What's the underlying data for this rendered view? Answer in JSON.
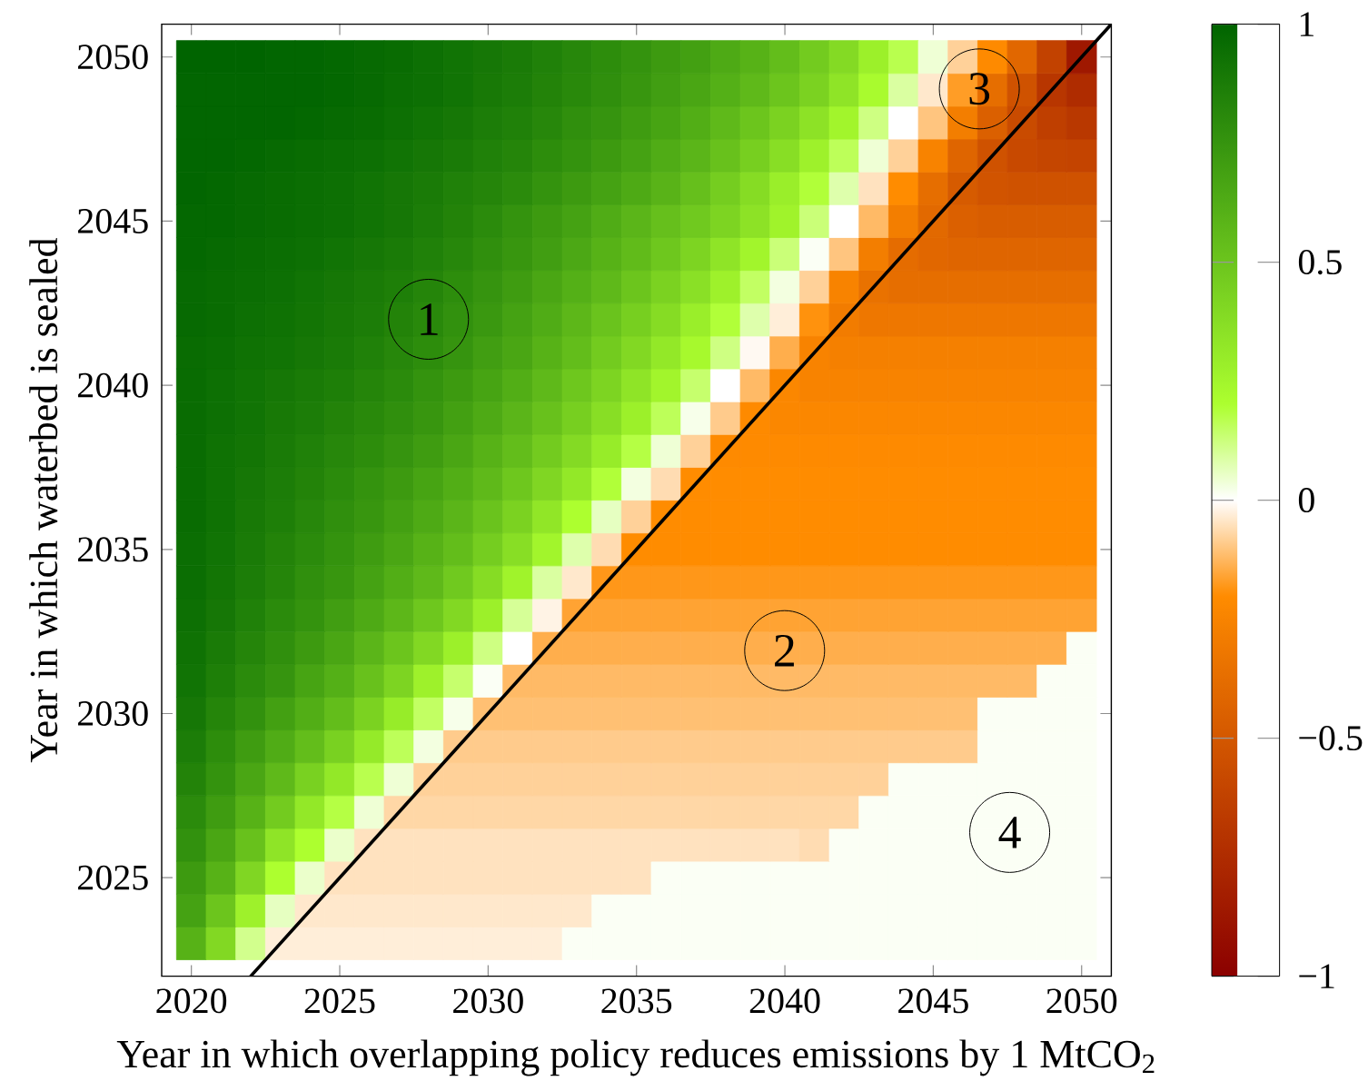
{
  "chart_data": {
    "type": "heatmap",
    "xlabel": "Year in which overlapping policy reduces emissions by 1 MtCO$_{2}$",
    "ylabel": "Year in which waterbed is sealed",
    "x": [
      2020,
      2021,
      2022,
      2023,
      2024,
      2025,
      2026,
      2027,
      2028,
      2029,
      2030,
      2031,
      2032,
      2033,
      2034,
      2035,
      2036,
      2037,
      2038,
      2039,
      2040,
      2041,
      2042,
      2043,
      2044,
      2045,
      2046,
      2047,
      2048,
      2049,
      2050
    ],
    "y": [
      2050,
      2049,
      2048,
      2047,
      2046,
      2045,
      2044,
      2043,
      2042,
      2041,
      2040,
      2039,
      2038,
      2037,
      2036,
      2035,
      2034,
      2033,
      2032,
      2031,
      2030,
      2029,
      2028,
      2027,
      2026,
      2025,
      2024,
      2023
    ],
    "xlim": [
      2019,
      2051
    ],
    "ylim": [
      2022,
      2051
    ],
    "xticks": [
      2020,
      2025,
      2030,
      2035,
      2040,
      2045,
      2050
    ],
    "yticks": [
      2025,
      2030,
      2035,
      2040,
      2045,
      2050
    ],
    "clim": [
      -1,
      1
    ],
    "cticks": [
      {
        "value": -1,
        "label": "−1"
      },
      {
        "value": -0.5,
        "label": "−0.5"
      },
      0,
      0.5,
      1
    ],
    "cells": [
      [
        1.0,
        1.0,
        1.0,
        0.99,
        0.99,
        0.98,
        0.97,
        0.96,
        0.94,
        0.92,
        0.9,
        0.88,
        0.85,
        0.82,
        0.79,
        0.76,
        0.72,
        0.69,
        0.64,
        0.6,
        0.54,
        0.47,
        0.39,
        0.28,
        0.17,
        0.04,
        -0.08,
        -0.21,
        -0.41,
        -0.62,
        -0.86
      ],
      [
        0.99,
        0.99,
        0.99,
        0.99,
        0.99,
        0.98,
        0.97,
        0.95,
        0.94,
        0.92,
        0.89,
        0.87,
        0.84,
        0.81,
        0.78,
        0.74,
        0.7,
        0.66,
        0.61,
        0.56,
        0.5,
        0.43,
        0.34,
        0.22,
        0.09,
        -0.04,
        -0.17,
        -0.37,
        -0.53,
        -0.69,
        -0.75
      ],
      [
        0.99,
        0.99,
        0.99,
        0.99,
        0.98,
        0.97,
        0.96,
        0.94,
        0.92,
        0.9,
        0.87,
        0.85,
        0.82,
        0.78,
        0.75,
        0.71,
        0.67,
        0.62,
        0.56,
        0.5,
        0.43,
        0.35,
        0.25,
        0.12,
        0.0,
        -0.1,
        -0.28,
        -0.45,
        -0.57,
        -0.64,
        -0.68
      ],
      [
        0.99,
        0.99,
        0.98,
        0.97,
        0.96,
        0.95,
        0.94,
        0.92,
        0.9,
        0.88,
        0.85,
        0.83,
        0.79,
        0.76,
        0.72,
        0.68,
        0.63,
        0.58,
        0.52,
        0.45,
        0.37,
        0.27,
        0.16,
        0.04,
        -0.08,
        -0.25,
        -0.42,
        -0.53,
        -0.58,
        -0.6,
        -0.61
      ],
      [
        0.99,
        0.98,
        0.97,
        0.96,
        0.95,
        0.94,
        0.92,
        0.9,
        0.88,
        0.85,
        0.83,
        0.8,
        0.76,
        0.72,
        0.68,
        0.64,
        0.59,
        0.53,
        0.46,
        0.38,
        0.29,
        0.19,
        0.08,
        -0.05,
        -0.2,
        -0.37,
        -0.48,
        -0.52,
        -0.53,
        -0.53,
        -0.53
      ],
      [
        0.98,
        0.98,
        0.97,
        0.96,
        0.95,
        0.94,
        0.92,
        0.9,
        0.87,
        0.84,
        0.8,
        0.76,
        0.72,
        0.68,
        0.63,
        0.58,
        0.53,
        0.48,
        0.42,
        0.35,
        0.26,
        0.13,
        0.0,
        -0.12,
        -0.28,
        -0.4,
        -0.45,
        -0.47,
        -0.47,
        -0.47,
        -0.47
      ],
      [
        0.98,
        0.97,
        0.96,
        0.95,
        0.94,
        0.92,
        0.9,
        0.88,
        0.85,
        0.82,
        0.78,
        0.74,
        0.7,
        0.65,
        0.6,
        0.55,
        0.49,
        0.42,
        0.34,
        0.25,
        0.13,
        0.01,
        -0.1,
        -0.28,
        -0.38,
        -0.41,
        -0.42,
        -0.42,
        -0.42,
        -0.42,
        -0.42
      ],
      [
        0.97,
        0.96,
        0.95,
        0.94,
        0.92,
        0.9,
        0.88,
        0.86,
        0.83,
        0.79,
        0.75,
        0.71,
        0.66,
        0.61,
        0.56,
        0.5,
        0.43,
        0.36,
        0.27,
        0.15,
        0.03,
        -0.08,
        -0.25,
        -0.35,
        -0.37,
        -0.37,
        -0.37,
        -0.37,
        -0.37,
        -0.37,
        -0.37
      ],
      [
        0.97,
        0.96,
        0.94,
        0.93,
        0.91,
        0.89,
        0.87,
        0.84,
        0.81,
        0.77,
        0.73,
        0.68,
        0.63,
        0.57,
        0.51,
        0.45,
        0.38,
        0.29,
        0.19,
        0.08,
        -0.03,
        -0.19,
        -0.29,
        -0.32,
        -0.32,
        -0.32,
        -0.32,
        -0.32,
        -0.32,
        -0.32,
        -0.32
      ],
      [
        0.96,
        0.95,
        0.93,
        0.92,
        0.9,
        0.88,
        0.85,
        0.82,
        0.79,
        0.75,
        0.7,
        0.66,
        0.6,
        0.54,
        0.47,
        0.4,
        0.32,
        0.23,
        0.12,
        -0.01,
        -0.14,
        -0.25,
        -0.27,
        -0.27,
        -0.27,
        -0.27,
        -0.27,
        -0.27,
        -0.27,
        -0.27,
        -0.27
      ],
      [
        0.96,
        0.94,
        0.92,
        0.9,
        0.88,
        0.86,
        0.83,
        0.8,
        0.76,
        0.72,
        0.67,
        0.62,
        0.56,
        0.49,
        0.42,
        0.34,
        0.25,
        0.14,
        0.0,
        -0.12,
        -0.23,
        -0.25,
        -0.25,
        -0.25,
        -0.25,
        -0.25,
        -0.25,
        -0.25,
        -0.25,
        -0.25,
        -0.25
      ],
      [
        0.96,
        0.94,
        0.92,
        0.89,
        0.87,
        0.84,
        0.81,
        0.78,
        0.74,
        0.69,
        0.64,
        0.58,
        0.52,
        0.45,
        0.37,
        0.28,
        0.16,
        0.02,
        -0.09,
        -0.21,
        -0.23,
        -0.23,
        -0.23,
        -0.23,
        -0.23,
        -0.23,
        -0.23,
        -0.23,
        -0.23,
        -0.23,
        -0.23
      ],
      [
        0.96,
        0.93,
        0.91,
        0.88,
        0.85,
        0.82,
        0.79,
        0.75,
        0.71,
        0.66,
        0.6,
        0.54,
        0.47,
        0.39,
        0.3,
        0.18,
        0.04,
        -0.08,
        -0.21,
        -0.21,
        -0.21,
        -0.21,
        -0.21,
        -0.21,
        -0.21,
        -0.21,
        -0.21,
        -0.21,
        -0.21,
        -0.21,
        -0.21
      ],
      [
        0.96,
        0.93,
        0.9,
        0.87,
        0.84,
        0.8,
        0.76,
        0.72,
        0.67,
        0.62,
        0.56,
        0.49,
        0.41,
        0.32,
        0.19,
        0.03,
        -0.06,
        -0.2,
        -0.2,
        -0.2,
        -0.2,
        -0.2,
        -0.2,
        -0.2,
        -0.2,
        -0.2,
        -0.2,
        -0.2,
        -0.2,
        -0.2,
        -0.2
      ],
      [
        0.96,
        0.93,
        0.89,
        0.86,
        0.82,
        0.78,
        0.74,
        0.69,
        0.64,
        0.58,
        0.51,
        0.43,
        0.33,
        0.2,
        0.06,
        -0.08,
        -0.2,
        -0.2,
        -0.2,
        -0.2,
        -0.2,
        -0.2,
        -0.2,
        -0.2,
        -0.2,
        -0.2,
        -0.2,
        -0.2,
        -0.2,
        -0.2,
        -0.2
      ],
      [
        0.95,
        0.92,
        0.88,
        0.84,
        0.8,
        0.76,
        0.71,
        0.66,
        0.6,
        0.54,
        0.46,
        0.37,
        0.25,
        0.08,
        -0.06,
        -0.2,
        -0.2,
        -0.2,
        -0.2,
        -0.2,
        -0.2,
        -0.2,
        -0.2,
        -0.2,
        -0.2,
        -0.2,
        -0.2,
        -0.2,
        -0.2,
        -0.2,
        -0.2
      ],
      [
        0.95,
        0.91,
        0.87,
        0.83,
        0.78,
        0.74,
        0.68,
        0.62,
        0.56,
        0.48,
        0.38,
        0.26,
        0.09,
        -0.04,
        -0.18,
        -0.18,
        -0.18,
        -0.18,
        -0.18,
        -0.18,
        -0.18,
        -0.18,
        -0.18,
        -0.18,
        -0.18,
        -0.18,
        -0.18,
        -0.18,
        -0.18,
        -0.18,
        -0.18
      ],
      [
        0.94,
        0.9,
        0.85,
        0.8,
        0.76,
        0.7,
        0.64,
        0.57,
        0.49,
        0.4,
        0.28,
        0.1,
        -0.02,
        -0.16,
        -0.16,
        -0.16,
        -0.16,
        -0.16,
        -0.16,
        -0.16,
        -0.16,
        -0.16,
        -0.16,
        -0.16,
        -0.16,
        -0.16,
        -0.16,
        -0.16,
        -0.16,
        -0.16,
        -0.16
      ],
      [
        0.93,
        0.88,
        0.83,
        0.78,
        0.72,
        0.66,
        0.58,
        0.5,
        0.4,
        0.28,
        0.12,
        0.0,
        -0.14,
        -0.14,
        -0.14,
        -0.14,
        -0.14,
        -0.14,
        -0.14,
        -0.14,
        -0.14,
        -0.14,
        -0.14,
        -0.14,
        -0.14,
        -0.14,
        -0.14,
        -0.14,
        -0.14,
        -0.14,
        0.01
      ],
      [
        0.92,
        0.86,
        0.8,
        0.75,
        0.67,
        0.61,
        0.52,
        0.42,
        0.27,
        0.14,
        0.01,
        -0.12,
        -0.12,
        -0.12,
        -0.12,
        -0.12,
        -0.12,
        -0.12,
        -0.12,
        -0.12,
        -0.12,
        -0.12,
        -0.12,
        -0.12,
        -0.12,
        -0.12,
        -0.12,
        -0.12,
        -0.12,
        0.01,
        0.01
      ],
      [
        0.9,
        0.83,
        0.77,
        0.69,
        0.62,
        0.54,
        0.43,
        0.3,
        0.15,
        0.02,
        -0.11,
        -0.11,
        -0.11,
        -0.11,
        -0.11,
        -0.11,
        -0.11,
        -0.11,
        -0.11,
        -0.11,
        -0.11,
        -0.11,
        -0.11,
        -0.11,
        -0.11,
        -0.11,
        -0.11,
        0.01,
        0.01,
        0.01,
        0.01
      ],
      [
        0.87,
        0.79,
        0.71,
        0.63,
        0.54,
        0.44,
        0.31,
        0.16,
        0.03,
        -0.09,
        -0.09,
        -0.09,
        -0.09,
        -0.09,
        -0.09,
        -0.09,
        -0.09,
        -0.09,
        -0.09,
        -0.09,
        -0.09,
        -0.09,
        -0.09,
        -0.09,
        -0.09,
        -0.09,
        -0.09,
        0.01,
        0.01,
        0.01,
        0.01
      ],
      [
        0.84,
        0.76,
        0.66,
        0.56,
        0.44,
        0.32,
        0.17,
        0.04,
        -0.08,
        -0.08,
        -0.08,
        -0.08,
        -0.08,
        -0.08,
        -0.08,
        -0.08,
        -0.08,
        -0.08,
        -0.08,
        -0.08,
        -0.08,
        -0.08,
        -0.08,
        -0.08,
        0.01,
        0.01,
        0.01,
        0.01,
        0.01,
        0.01,
        0.01
      ],
      [
        0.8,
        0.71,
        0.6,
        0.47,
        0.32,
        0.18,
        0.04,
        -0.07,
        -0.07,
        -0.07,
        -0.07,
        -0.07,
        -0.07,
        -0.07,
        -0.07,
        -0.07,
        -0.07,
        -0.07,
        -0.07,
        -0.07,
        -0.07,
        -0.07,
        -0.07,
        0.01,
        0.01,
        0.01,
        0.01,
        0.01,
        0.01,
        0.01,
        0.01
      ],
      [
        0.77,
        0.66,
        0.52,
        0.34,
        0.2,
        0.05,
        -0.05,
        -0.05,
        -0.05,
        -0.05,
        -0.05,
        -0.05,
        -0.05,
        -0.05,
        -0.05,
        -0.05,
        -0.05,
        -0.05,
        -0.05,
        -0.05,
        -0.05,
        -0.06,
        0.01,
        0.01,
        0.01,
        0.01,
        0.01,
        0.01,
        0.01,
        0.01,
        0.01
      ],
      [
        0.72,
        0.6,
        0.41,
        0.2,
        0.05,
        -0.05,
        -0.05,
        -0.05,
        -0.05,
        -0.05,
        -0.05,
        -0.05,
        -0.05,
        -0.05,
        -0.05,
        -0.05,
        0.01,
        0.01,
        0.01,
        0.01,
        0.01,
        0.01,
        0.01,
        0.01,
        0.01,
        0.01,
        0.01,
        0.01,
        0.01,
        0.01,
        0.01
      ],
      [
        0.68,
        0.5,
        0.27,
        0.06,
        -0.04,
        -0.04,
        -0.04,
        -0.04,
        -0.04,
        -0.04,
        -0.04,
        -0.04,
        -0.04,
        -0.04,
        0.01,
        0.01,
        0.01,
        0.01,
        0.01,
        0.01,
        0.01,
        0.01,
        0.01,
        0.01,
        0.01,
        0.01,
        0.01,
        0.01,
        0.01,
        0.01,
        0.01
      ],
      [
        0.6,
        0.4,
        0.11,
        -0.03,
        -0.03,
        -0.03,
        -0.03,
        -0.03,
        -0.03,
        -0.03,
        -0.03,
        -0.03,
        -0.03,
        0.01,
        0.01,
        0.01,
        0.01,
        0.01,
        0.01,
        0.01,
        0.01,
        0.01,
        0.01,
        0.01,
        0.01,
        0.01,
        0.01,
        0.01,
        0.01,
        0.01,
        0.01
      ]
    ],
    "series": [
      {
        "type": "line",
        "x": [
          2022,
          2051
        ],
        "values": [
          2022,
          2051
        ],
        "color": "#000000"
      }
    ],
    "annotations": [
      "1",
      "2",
      "3",
      "4"
    ]
  }
}
